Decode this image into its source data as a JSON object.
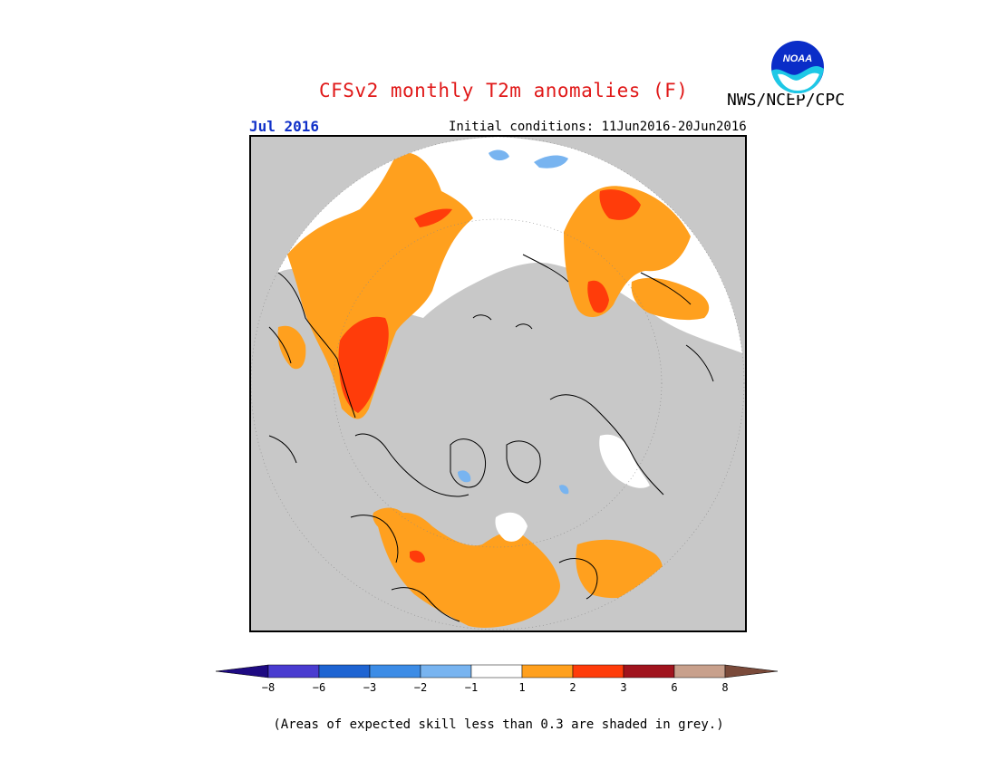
{
  "title": "CFSv2 monthly T2m anomalies (F)",
  "agency": "NWS/NCEP/CPC",
  "logo_text": "NOAA",
  "target_month": "Jul 2016",
  "initial_conditions": "Initial conditions: 11Jun2016-20Jun2016",
  "footnote": "(Areas of expected skill less than 0.3 are shaded in grey.)",
  "colorbar": {
    "tick_labels": [
      "−8",
      "−6",
      "−3",
      "−2",
      "−1",
      "1",
      "2",
      "3",
      "6",
      "8"
    ],
    "colors": [
      "#1e0a82",
      "#4a3cd0",
      "#1e64d2",
      "#3c8ce6",
      "#78b4f0",
      "#ffffff",
      "#ffa01e",
      "#ff3c0a",
      "#a0141e",
      "#c8a08c",
      "#7a4a3a"
    ]
  },
  "map_colors": {
    "low_skill": "#c8c8c8",
    "neutral": "#ffffff",
    "warm_1": "#ffa01e",
    "warm_2": "#ff3c0a",
    "cool_1": "#78b4f0",
    "coast": "#000000"
  }
}
